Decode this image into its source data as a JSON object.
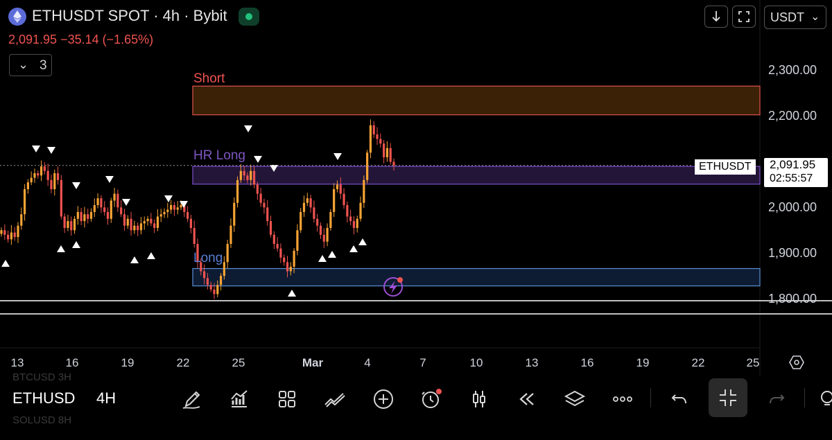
{
  "header": {
    "title": "ETHUSDT SPOT · 4h · Bybit",
    "price_change": "2,091.95  −35.14 (−1.65%)",
    "indicator_count": "3",
    "currency": "USDT"
  },
  "zones": {
    "short_label": "Short",
    "hr_long_label": "HR Long",
    "long_label": "Long"
  },
  "price_axis": {
    "labels": [
      "2,300.00",
      "2,200.00",
      "2,000.00",
      "1,900.00",
      "1,800.00"
    ],
    "symbol_tag": "ETHUSDT",
    "current_price": "2,091.95",
    "countdown": "02:55:57"
  },
  "time_axis": {
    "labels": [
      "13",
      "16",
      "19",
      "22",
      "25",
      "Mar",
      "4",
      "7",
      "10",
      "13",
      "16",
      "19",
      "22",
      "25"
    ]
  },
  "bottom_bar": {
    "symbol": "ETHUSD",
    "interval": "4H",
    "ghost_top": "BTCUSD     3H",
    "ghost_bottom": "SOLUSD     8H"
  },
  "colors": {
    "bull": "#f7a435",
    "bear": "#ef5350",
    "short_zone": "#3b2207",
    "short_border": "#e0524e",
    "hr_long_zone": "#231538",
    "hr_long_border": "#7b4fc9",
    "long_zone": "#0e1c33",
    "long_border": "#5b8ed6"
  },
  "chart_data": {
    "type": "candlestick",
    "ylim": [
      1750,
      2350
    ],
    "price_levels": [
      2300,
      2200,
      2000,
      1900,
      1800
    ],
    "current_price": 2091.95,
    "zones": [
      {
        "name": "Short",
        "from": 2203,
        "to": 2266
      },
      {
        "name": "HR Long",
        "from": 2051,
        "to": 2090
      },
      {
        "name": "Long",
        "from": 1828,
        "to": 1866
      }
    ],
    "closes": [
      1950,
      1940,
      1930,
      1945,
      1935,
      1960,
      1985,
      2040,
      2055,
      2065,
      2075,
      2070,
      2090,
      2080,
      2060,
      2040,
      2075,
      2060,
      1980,
      1955,
      1970,
      1950,
      1975,
      1990,
      1970,
      1985,
      1975,
      1990,
      2005,
      2020,
      2000,
      1990,
      1975,
      2015,
      2030,
      2000,
      1985,
      1960,
      1975,
      1950,
      1960,
      1950,
      1965,
      1970,
      1975,
      1965,
      1955,
      1980,
      1985,
      1990,
      1995,
      2005,
      1995,
      2000,
      2005,
      1990,
      1975,
      1955,
      1920,
      1880,
      1860,
      1845,
      1830,
      1820,
      1810,
      1830,
      1850,
      1880,
      1920,
      1960,
      2010,
      2060,
      2080,
      2070,
      2060,
      2080,
      2050,
      2030,
      2010,
      2000,
      1970,
      1940,
      1920,
      1910,
      1890,
      1880,
      1860,
      1870,
      1905,
      1950,
      1990,
      2010,
      2020,
      2000,
      1975,
      1960,
      1940,
      1925,
      1955,
      1990,
      2040,
      2050,
      2030,
      2005,
      1980,
      1970,
      1955,
      1975,
      2010,
      2060,
      2120,
      2180,
      2160,
      2150,
      2140,
      2110,
      2130,
      2100,
      2092
    ]
  }
}
